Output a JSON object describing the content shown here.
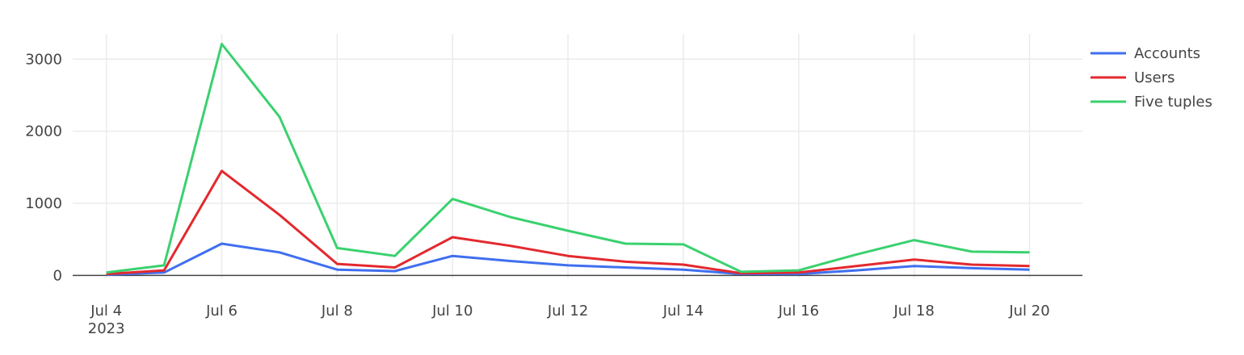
{
  "chart_data": {
    "type": "line",
    "x": [
      "2023-07-04",
      "2023-07-05",
      "2023-07-06",
      "2023-07-07",
      "2023-07-08",
      "2023-07-09",
      "2023-07-10",
      "2023-07-11",
      "2023-07-12",
      "2023-07-13",
      "2023-07-14",
      "2023-07-15",
      "2023-07-16",
      "2023-07-17",
      "2023-07-18",
      "2023-07-19",
      "2023-07-20"
    ],
    "series": [
      {
        "name": "Accounts",
        "color": "#3f6ff0",
        "values": [
          10,
          40,
          440,
          320,
          80,
          60,
          270,
          200,
          140,
          110,
          80,
          20,
          20,
          70,
          130,
          100,
          80
        ]
      },
      {
        "name": "Users",
        "color": "#e3292e",
        "values": [
          20,
          70,
          1450,
          840,
          160,
          110,
          530,
          410,
          270,
          190,
          150,
          30,
          40,
          130,
          220,
          150,
          130
        ]
      },
      {
        "name": "Five tuples",
        "color": "#3ad16f",
        "values": [
          40,
          140,
          3210,
          2200,
          380,
          270,
          1060,
          810,
          620,
          440,
          430,
          50,
          70,
          290,
          490,
          330,
          320
        ]
      }
    ],
    "x_ticks": [
      {
        "date": "2023-07-04",
        "label": "Jul 4",
        "sublabel": "2023"
      },
      {
        "date": "2023-07-06",
        "label": "Jul 6"
      },
      {
        "date": "2023-07-08",
        "label": "Jul 8"
      },
      {
        "date": "2023-07-10",
        "label": "Jul 10"
      },
      {
        "date": "2023-07-12",
        "label": "Jul 12"
      },
      {
        "date": "2023-07-14",
        "label": "Jul 14"
      },
      {
        "date": "2023-07-16",
        "label": "Jul 16"
      },
      {
        "date": "2023-07-18",
        "label": "Jul 18"
      },
      {
        "date": "2023-07-20",
        "label": "Jul 20"
      }
    ],
    "y_ticks": [
      {
        "value": 0,
        "label": "0"
      },
      {
        "value": 1000,
        "label": "1000"
      },
      {
        "value": 2000,
        "label": "2000"
      },
      {
        "value": 3000,
        "label": "3000"
      }
    ],
    "xlim": [
      "2023-07-03T10:00",
      "2023-07-20T22:00"
    ],
    "ylim": [
      -175,
      3350
    ],
    "grid": true,
    "legend_position": "top-right",
    "title": "",
    "xlabel": "",
    "ylabel": ""
  }
}
